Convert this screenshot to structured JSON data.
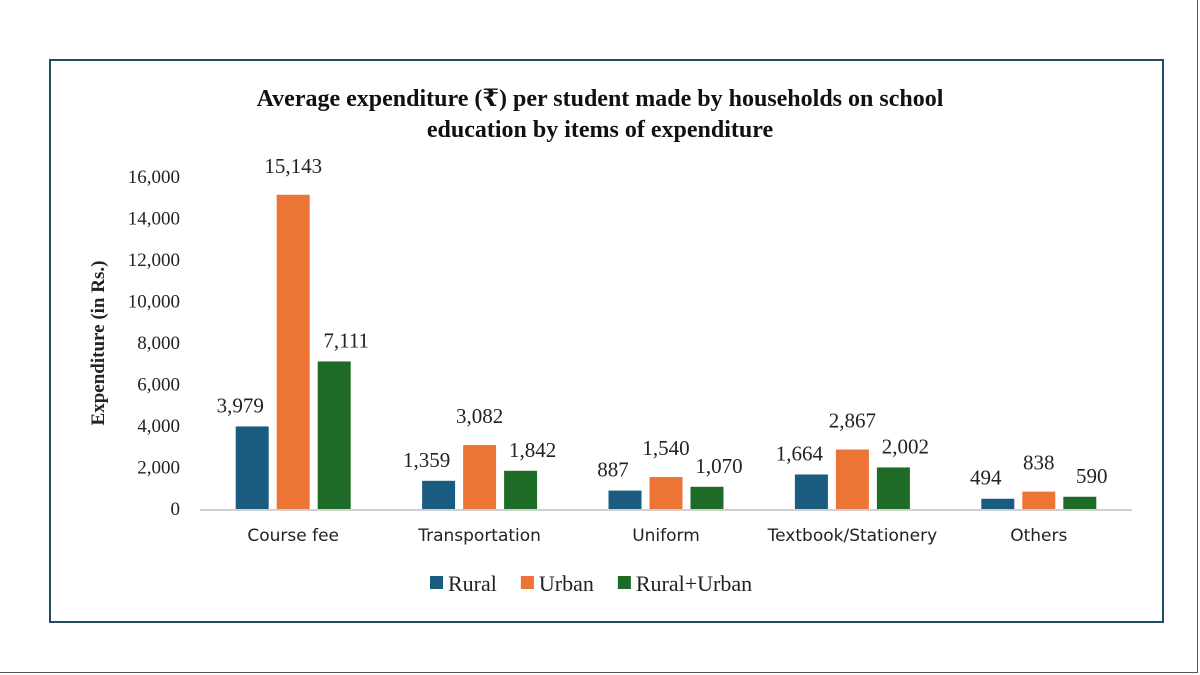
{
  "chart_data": {
    "type": "bar",
    "title_lines": [
      "Average expenditure (₹) per student made by households on school",
      "education by items of expenditure"
    ],
    "xlabel": "",
    "ylabel": "Expenditure (in Rs.)",
    "ylim": [
      0,
      16000
    ],
    "yticks": [
      "0",
      "2,000",
      "4,000",
      "6,000",
      "8,000",
      "10,000",
      "12,000",
      "14,000",
      "16,000"
    ],
    "grid": false,
    "legend_position": "bottom",
    "categories": [
      "Course fee",
      "Transportation",
      "Uniform",
      "Textbook/Stationery",
      "Others"
    ],
    "series": [
      {
        "name": "Rural",
        "color": "#1a5c80",
        "values": [
          3979,
          1359,
          887,
          1664,
          494
        ],
        "labels": [
          "3,979",
          "1,359",
          "887",
          "1,664",
          "494"
        ]
      },
      {
        "name": "Urban",
        "color": "#ec7434",
        "values": [
          15143,
          3082,
          1540,
          2867,
          838
        ],
        "labels": [
          "15,143",
          "3,082",
          "1,540",
          "2,867",
          "838"
        ]
      },
      {
        "name": "Rural+Urban",
        "color": "#1e6b28",
        "values": [
          7111,
          1842,
          1070,
          2002,
          590
        ],
        "labels": [
          "7,111",
          "1,842",
          "1,070",
          "2,002",
          "590"
        ]
      }
    ]
  }
}
